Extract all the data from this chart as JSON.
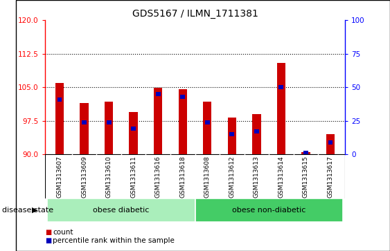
{
  "title": "GDS5167 / ILMN_1711381",
  "samples": [
    "GSM1313607",
    "GSM1313609",
    "GSM1313610",
    "GSM1313611",
    "GSM1313616",
    "GSM1313618",
    "GSM1313608",
    "GSM1313612",
    "GSM1313613",
    "GSM1313614",
    "GSM1313615",
    "GSM1313617"
  ],
  "counts": [
    106.0,
    101.5,
    101.8,
    99.5,
    104.8,
    104.5,
    101.8,
    98.3,
    99.0,
    110.5,
    90.5,
    94.5
  ],
  "percentile_ranks": [
    41,
    24,
    24,
    19,
    45,
    43,
    24,
    15,
    17,
    50,
    1,
    9
  ],
  "ylim_left": [
    90,
    120
  ],
  "ylim_right": [
    0,
    100
  ],
  "yticks_left": [
    90,
    97.5,
    105,
    112.5,
    120
  ],
  "yticks_right": [
    0,
    25,
    50,
    75,
    100
  ],
  "disease_groups": [
    {
      "label": "obese diabetic",
      "start": 0,
      "end": 6,
      "color": "#AAEEBB"
    },
    {
      "label": "obese non-diabetic",
      "start": 6,
      "end": 12,
      "color": "#44CC66"
    }
  ],
  "bar_color": "#CC0000",
  "percentile_color": "#0000BB",
  "bar_width": 0.35,
  "plot_bg": "#FFFFFF",
  "xtick_bg": "#D0D0D0",
  "fig_bg": "#FFFFFF",
  "grid_color": "#000000",
  "legend_items": [
    {
      "label": "count",
      "color": "#CC0000"
    },
    {
      "label": "percentile rank within the sample",
      "color": "#0000BB"
    }
  ],
  "disease_state_label": "disease state",
  "base_value": 90
}
